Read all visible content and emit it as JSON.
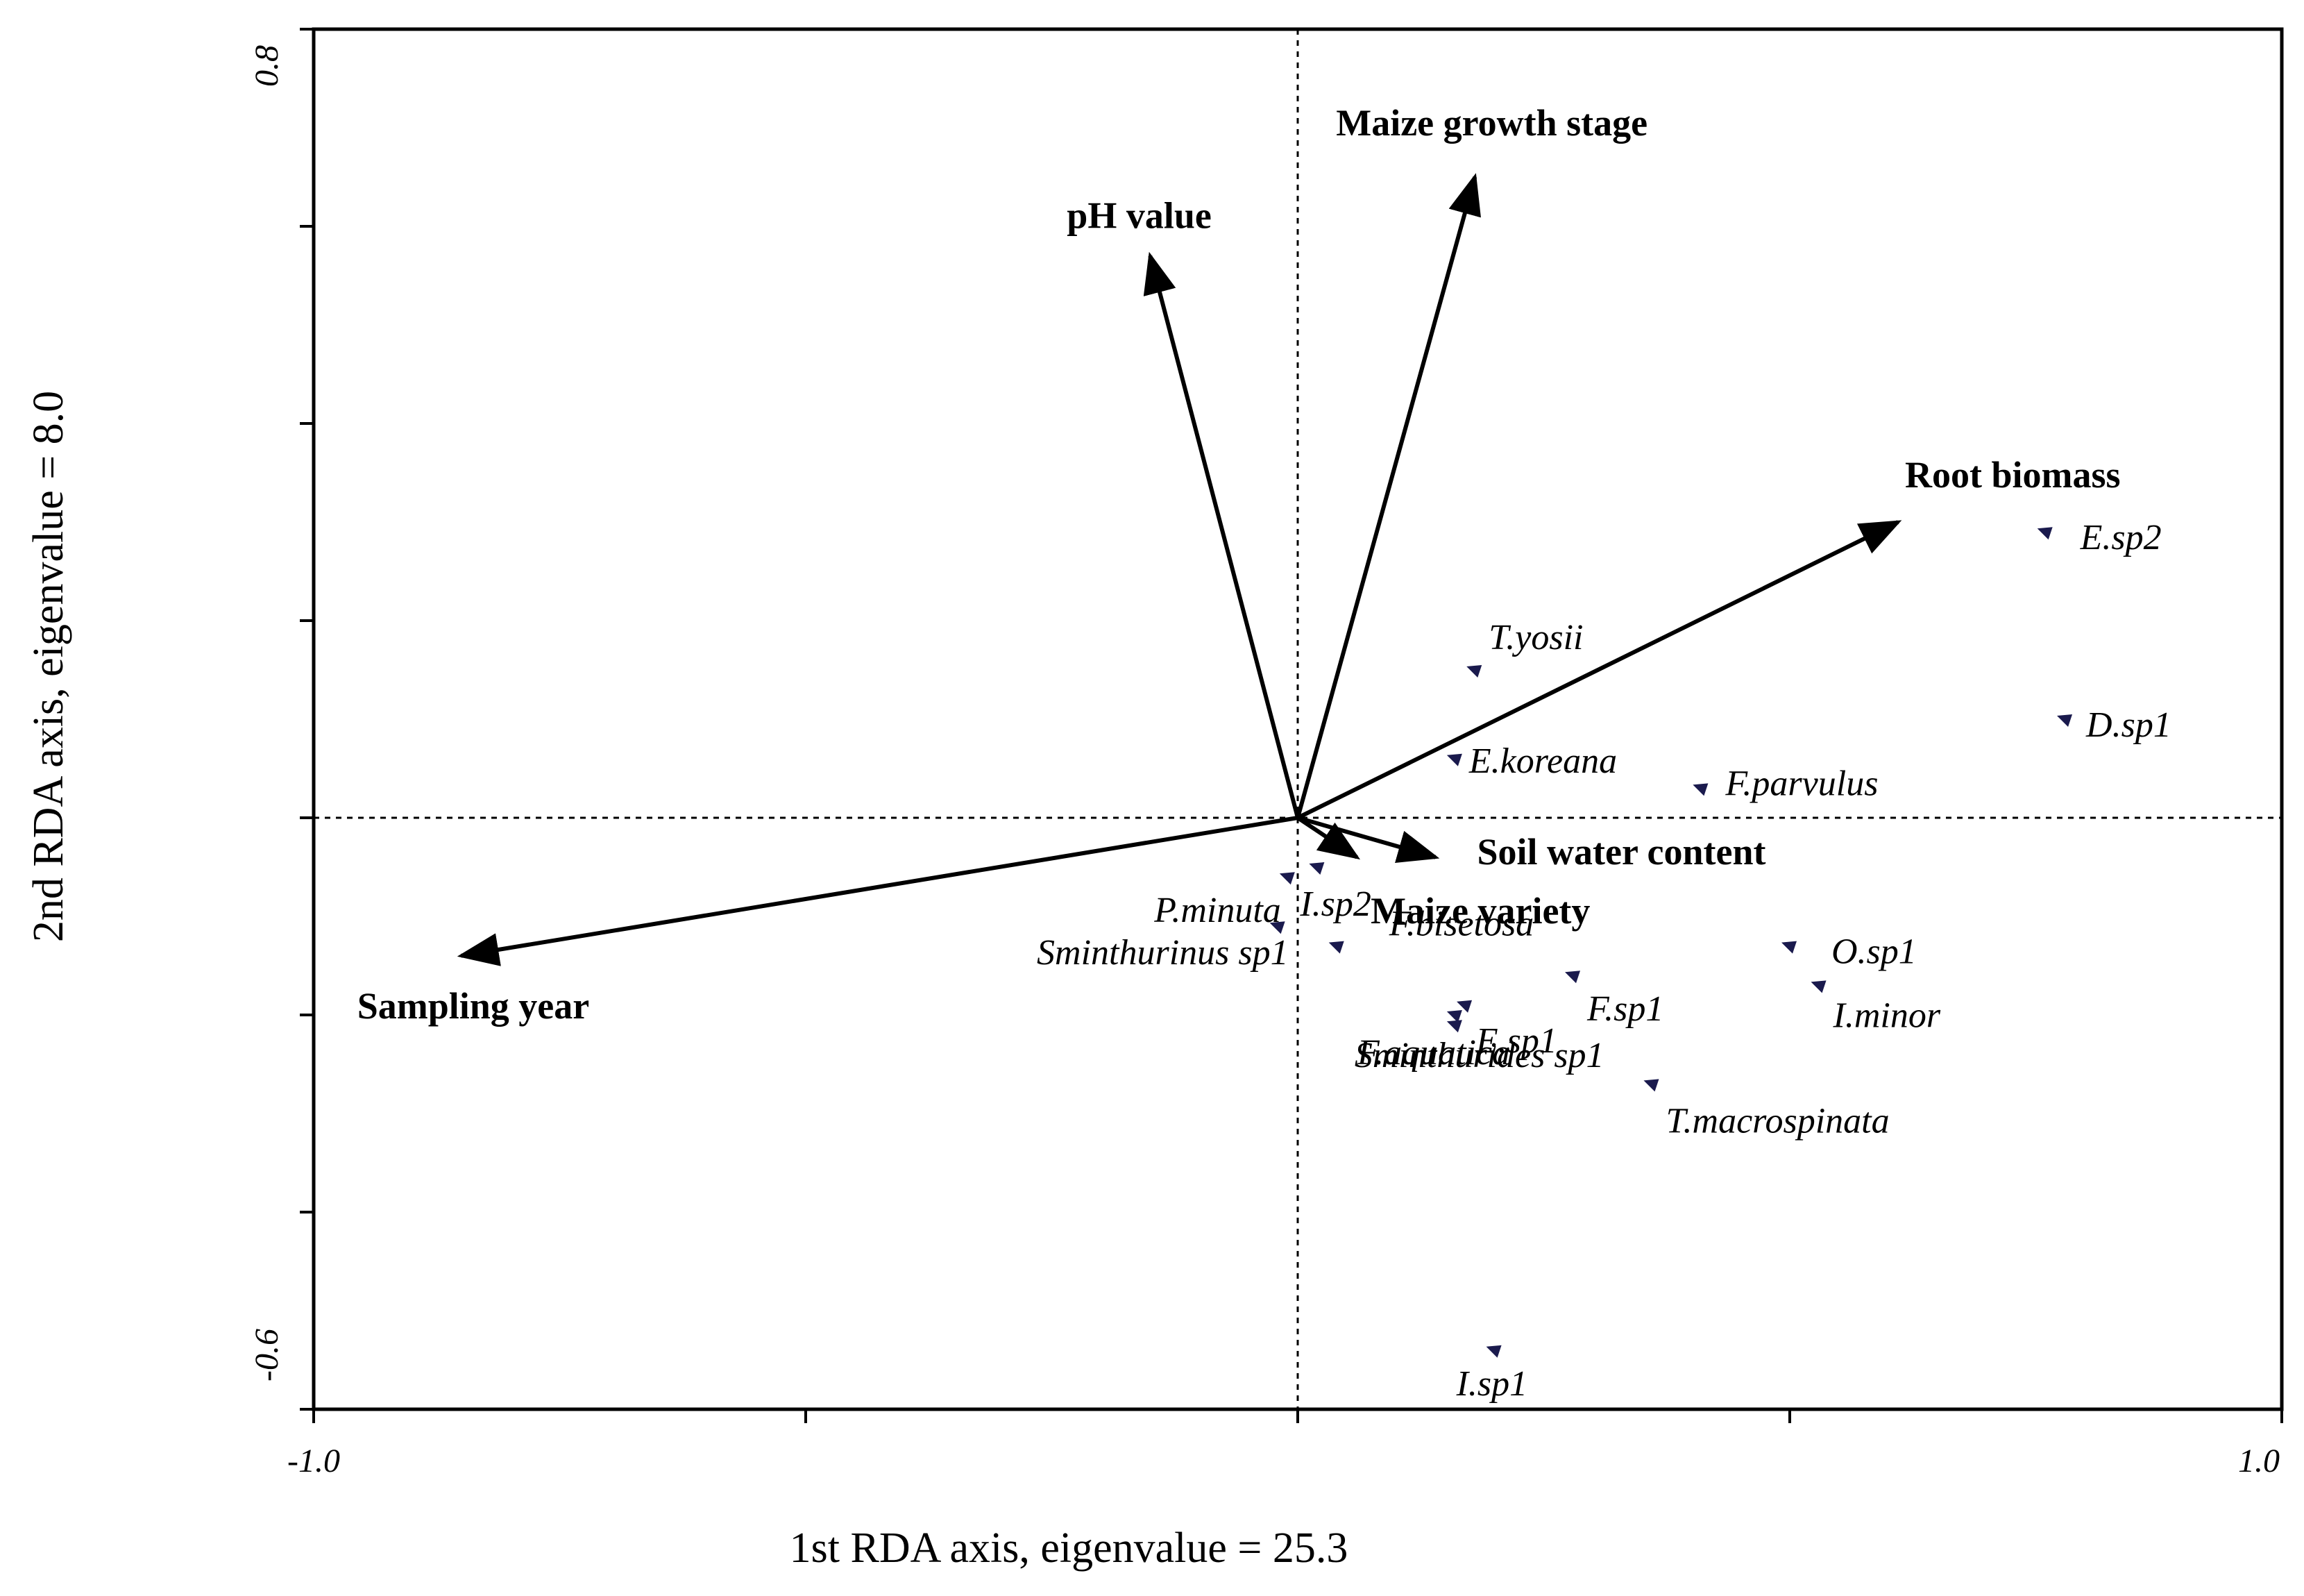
{
  "chart_data": {
    "type": "biplot",
    "xlabel": "1st RDA axis, eigenvalue = 25.3",
    "ylabel": "2nd RDA axis, eigenvalue = 8.0",
    "xlim": [
      -1.0,
      1.0
    ],
    "ylim": [
      -0.6,
      0.8
    ],
    "x_tick_labels": [
      "-1.0",
      "1.0"
    ],
    "y_tick_labels": [
      "-0.6",
      "0.8"
    ],
    "x_ticks": [
      -1.0,
      -0.5,
      0.0,
      0.5,
      1.0
    ],
    "y_ticks": [
      -0.6,
      -0.4,
      -0.2,
      0.0,
      0.2,
      0.4,
      0.6,
      0.8
    ],
    "origin_lines": true,
    "environmental_vectors": [
      {
        "label": "Maize growth stage",
        "x": 0.18,
        "y": 0.65
      },
      {
        "label": "pH value",
        "x": -0.15,
        "y": 0.57
      },
      {
        "label": "Root biomass",
        "x": 0.61,
        "y": 0.3
      },
      {
        "label": "Soil water content",
        "x": 0.14,
        "y": -0.04
      },
      {
        "label": "Maize variety",
        "x": 0.06,
        "y": -0.04
      },
      {
        "label": "Sampling year",
        "x": -0.85,
        "y": -0.14
      }
    ],
    "species": [
      {
        "label": "E.sp2",
        "x": 0.76,
        "y": 0.29
      },
      {
        "label": "D.sp1",
        "x": 0.78,
        "y": 0.1
      },
      {
        "label": "T.yosii",
        "x": 0.18,
        "y": 0.15
      },
      {
        "label": "E.koreana",
        "x": 0.16,
        "y": 0.06
      },
      {
        "label": "F.parvulus",
        "x": 0.41,
        "y": 0.03
      },
      {
        "label": "P.minuta",
        "x": -0.01,
        "y": -0.06
      },
      {
        "label": "I.sp2",
        "x": 0.02,
        "y": -0.05
      },
      {
        "label": "Sminthurinus sp1",
        "x": -0.02,
        "y": -0.11
      },
      {
        "label": "F.bisetosa",
        "x": 0.04,
        "y": -0.13
      },
      {
        "label": "Sminthurides sp1",
        "x": 0.16,
        "y": -0.2
      },
      {
        "label": "E.sp1",
        "x": 0.16,
        "y": -0.21
      },
      {
        "label": "F.sp1",
        "x": 0.28,
        "y": -0.16
      },
      {
        "label": "F.aquatica",
        "x": 0.17,
        "y": -0.19
      },
      {
        "label": "O.sp1",
        "x": 0.5,
        "y": -0.13
      },
      {
        "label": "I.minor",
        "x": 0.53,
        "y": -0.17
      },
      {
        "label": "T.macrospinata",
        "x": 0.36,
        "y": -0.27
      },
      {
        "label": "I.sp1",
        "x": 0.2,
        "y": -0.54
      }
    ],
    "marker_color": "#1a1a4d",
    "arrow_color": "#000000"
  }
}
